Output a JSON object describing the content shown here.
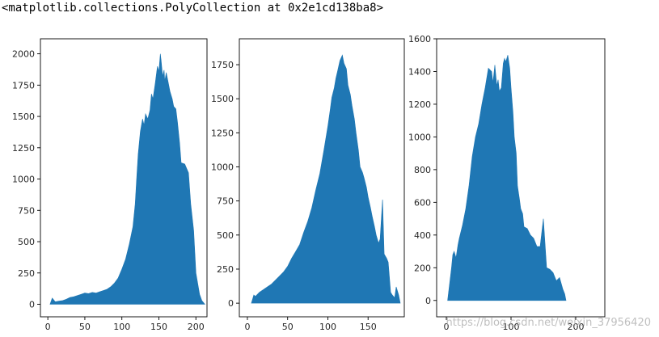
{
  "notebook": {
    "output_text": "<matplotlib.collections.PolyCollection at 0x2e1cd138ba8>",
    "watermark": "https://blog.csdn.net/weixin_37956420"
  },
  "style": {
    "fill_color": "#1f77b4"
  },
  "chart_data": [
    {
      "type": "area",
      "title": "",
      "xlabel": "",
      "ylabel": "",
      "xlim": [
        -10,
        215
      ],
      "ylim": [
        -100,
        2120
      ],
      "xticks": [
        0,
        50,
        100,
        150,
        200
      ],
      "yticks": [
        0,
        250,
        500,
        750,
        1000,
        1250,
        1500,
        1750,
        2000
      ],
      "grid": false,
      "x": [
        3,
        6,
        10,
        15,
        20,
        25,
        30,
        35,
        40,
        45,
        50,
        55,
        60,
        65,
        70,
        75,
        80,
        85,
        90,
        95,
        100,
        105,
        110,
        115,
        118,
        120,
        122,
        125,
        128,
        130,
        132,
        135,
        138,
        140,
        142,
        145,
        148,
        150,
        152,
        153,
        155,
        157,
        158,
        160,
        163,
        165,
        168,
        170,
        173,
        175,
        178,
        180,
        185,
        190,
        193,
        197,
        200,
        205,
        208,
        212
      ],
      "y": [
        0,
        50,
        20,
        25,
        30,
        40,
        55,
        60,
        70,
        80,
        90,
        85,
        95,
        90,
        100,
        110,
        120,
        140,
        170,
        210,
        280,
        360,
        480,
        620,
        800,
        1000,
        1200,
        1380,
        1480,
        1430,
        1520,
        1480,
        1550,
        1680,
        1640,
        1760,
        1900,
        1860,
        2000,
        1950,
        1820,
        1870,
        1780,
        1850,
        1760,
        1700,
        1640,
        1580,
        1560,
        1460,
        1290,
        1130,
        1120,
        1050,
        800,
        590,
        250,
        80,
        30,
        0
      ]
    },
    {
      "type": "area",
      "title": "",
      "xlabel": "",
      "ylabel": "",
      "xlim": [
        -10,
        195
      ],
      "ylim": [
        -100,
        1940
      ],
      "xticks": [
        0,
        50,
        100,
        150
      ],
      "yticks": [
        0,
        250,
        500,
        750,
        1000,
        1250,
        1500,
        1750
      ],
      "grid": false,
      "x": [
        5,
        8,
        10,
        15,
        20,
        25,
        30,
        35,
        40,
        45,
        50,
        55,
        60,
        65,
        70,
        75,
        80,
        85,
        90,
        95,
        100,
        103,
        105,
        108,
        110,
        112,
        115,
        118,
        120,
        123,
        125,
        128,
        130,
        133,
        135,
        138,
        140,
        143,
        145,
        148,
        150,
        153,
        155,
        158,
        160,
        163,
        165,
        168,
        170,
        173,
        175,
        178,
        180,
        183,
        185,
        188,
        190
      ],
      "y": [
        0,
        60,
        50,
        80,
        100,
        120,
        140,
        170,
        200,
        230,
        270,
        330,
        380,
        430,
        520,
        600,
        700,
        830,
        950,
        1120,
        1300,
        1420,
        1510,
        1580,
        1650,
        1700,
        1780,
        1820,
        1760,
        1720,
        1600,
        1530,
        1450,
        1350,
        1250,
        1120,
        1000,
        960,
        920,
        850,
        780,
        700,
        640,
        560,
        500,
        440,
        470,
        760,
        360,
        330,
        300,
        80,
        60,
        40,
        120,
        60,
        0
      ]
    },
    {
      "type": "area",
      "title": "",
      "xlabel": "",
      "ylabel": "",
      "xlim": [
        -15,
        245
      ],
      "ylim": [
        -100,
        1600
      ],
      "xticks": [
        0,
        100,
        200
      ],
      "yticks": [
        0,
        200,
        400,
        600,
        800,
        1000,
        1200,
        1400,
        1600
      ],
      "grid": false,
      "x": [
        2,
        5,
        8,
        10,
        12,
        15,
        18,
        20,
        25,
        30,
        35,
        40,
        45,
        50,
        55,
        60,
        65,
        70,
        72,
        75,
        78,
        80,
        82,
        85,
        88,
        90,
        92,
        95,
        98,
        100,
        103,
        105,
        108,
        110,
        113,
        115,
        118,
        120,
        125,
        130,
        135,
        140,
        145,
        150,
        155,
        160,
        165,
        170,
        175,
        180,
        183,
        185
      ],
      "y": [
        0,
        100,
        200,
        280,
        300,
        260,
        340,
        380,
        460,
        560,
        700,
        880,
        1000,
        1080,
        1200,
        1300,
        1420,
        1400,
        1330,
        1440,
        1310,
        1350,
        1280,
        1300,
        1450,
        1480,
        1460,
        1500,
        1420,
        1300,
        1150,
        1000,
        900,
        700,
        620,
        560,
        530,
        450,
        440,
        400,
        380,
        330,
        330,
        500,
        200,
        190,
        170,
        120,
        140,
        70,
        40,
        0
      ]
    }
  ]
}
